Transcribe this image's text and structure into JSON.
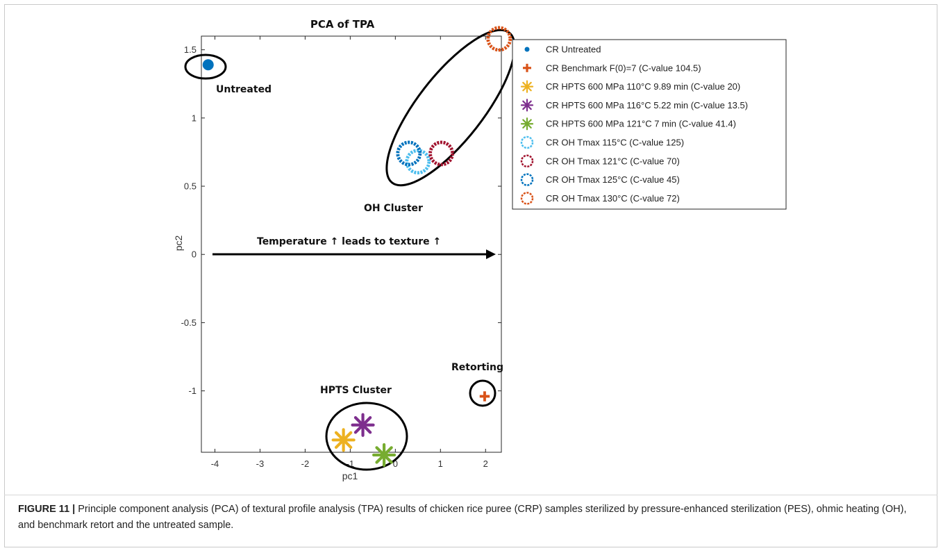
{
  "chart_data": {
    "type": "scatter",
    "title": "PCA of TPA",
    "xlabel": "pc1",
    "ylabel": "pc2",
    "xlim": [
      -4.3,
      2.35
    ],
    "ylim": [
      -1.45,
      1.6
    ],
    "xticks": [
      -4,
      -3,
      -2,
      -1,
      0,
      1,
      2
    ],
    "yticks": [
      -1,
      -0.5,
      0,
      0.5,
      1,
      1.5
    ],
    "legend_position": "outside-right",
    "series": [
      {
        "name": "CR Untreated",
        "marker": "dot",
        "color": "#0072BD",
        "points": [
          [
            -4.15,
            1.39
          ]
        ]
      },
      {
        "name": "CR Benchmark F(0)=7 (C-value 104.5)",
        "marker": "plus",
        "color": "#D95319",
        "points": [
          [
            1.98,
            -1.04
          ]
        ]
      },
      {
        "name": "CR HPTS 600 MPa 110°C 9.89 min (C-value 20)",
        "marker": "asterisk",
        "color": "#EDB120",
        "points": [
          [
            -1.15,
            -1.36
          ]
        ]
      },
      {
        "name": "CR HPTS 600 MPa 116°C 5.22 min (C-value 13.5)",
        "marker": "asterisk",
        "color": "#7E2F8E",
        "points": [
          [
            -0.72,
            -1.25
          ]
        ]
      },
      {
        "name": "CR HPTS 600 MPa 121°C 7 min (C-value 41.4)",
        "marker": "asterisk",
        "color": "#77AC30",
        "points": [
          [
            -0.25,
            -1.47
          ]
        ]
      },
      {
        "name": "CR OH Tmax 115°C (C-value 125)",
        "marker": "ring",
        "color": "#4DBEEE",
        "points": [
          [
            0.5,
            0.68
          ]
        ]
      },
      {
        "name": "CR OH Tmax 121°C (C-value 70)",
        "marker": "ring",
        "color": "#A2142F",
        "points": [
          [
            1.02,
            0.74
          ]
        ]
      },
      {
        "name": "CR OH Tmax 125°C (C-value 45)",
        "marker": "ring",
        "color": "#0072BD",
        "points": [
          [
            0.3,
            0.74
          ]
        ]
      },
      {
        "name": "CR OH Tmax 130°C (C-value 72)",
        "marker": "ring",
        "color": "#D95319",
        "points": [
          [
            2.3,
            1.58
          ]
        ]
      }
    ],
    "annotations": {
      "untreated": "Untreated",
      "oh_cluster": "OH Cluster",
      "hpts_cluster": "HPTS Cluster",
      "retorting": "Retorting",
      "arrow_text": "Temperature ↑ leads to texture ↑"
    }
  },
  "caption": {
    "label": "FIGURE 11 |",
    "text": " Principle component analysis (PCA) of textural profile analysis (TPA) results of chicken rice puree (CRP) samples sterilized by pressure-enhanced sterilization (PES), ohmic heating (OH), and benchmark retort and the untreated sample."
  }
}
